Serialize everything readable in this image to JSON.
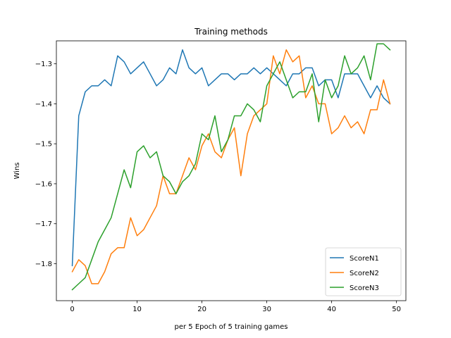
{
  "chart_data": {
    "type": "line",
    "title": "Training methods",
    "xlabel": "per 5 Epoch of 5 training games",
    "ylabel": "Wins",
    "xlim": [
      -2.45,
      51.45
    ],
    "ylim": [
      -1.8925,
      -1.2425
    ],
    "xticks": [
      0,
      10,
      20,
      30,
      40,
      50
    ],
    "yticks": [
      -1.8,
      -1.7,
      -1.6,
      -1.5,
      -1.4,
      -1.3
    ],
    "legend_position": "lower-right",
    "grid": false,
    "x": [
      0,
      1,
      2,
      3,
      4,
      5,
      6,
      7,
      8,
      9,
      10,
      11,
      12,
      13,
      14,
      15,
      16,
      17,
      18,
      19,
      20,
      21,
      22,
      23,
      24,
      25,
      26,
      27,
      28,
      29,
      30,
      31,
      32,
      33,
      34,
      35,
      36,
      37,
      38,
      39,
      40,
      41,
      42,
      43,
      44,
      45,
      46,
      47,
      48,
      49
    ],
    "series": [
      {
        "name": "ScoreN1",
        "color": "#1f77b4",
        "values": [
          -1.805,
          -1.43,
          -1.37,
          -1.355,
          -1.355,
          -1.34,
          -1.355,
          -1.28,
          -1.295,
          -1.325,
          -1.31,
          -1.295,
          -1.325,
          -1.355,
          -1.34,
          -1.31,
          -1.325,
          -1.265,
          -1.31,
          -1.325,
          -1.31,
          -1.355,
          -1.34,
          -1.325,
          -1.325,
          -1.34,
          -1.325,
          -1.325,
          -1.31,
          -1.325,
          -1.31,
          -1.325,
          -1.34,
          -1.355,
          -1.325,
          -1.325,
          -1.31,
          -1.31,
          -1.355,
          -1.34,
          -1.34,
          -1.385,
          -1.325,
          -1.325,
          -1.325,
          -1.355,
          -1.385,
          -1.355,
          -1.385,
          -1.4
        ]
      },
      {
        "name": "ScoreN2",
        "color": "#ff7f0e",
        "values": [
          -1.82,
          -1.79,
          -1.805,
          -1.85,
          -1.85,
          -1.82,
          -1.775,
          -1.76,
          -1.76,
          -1.685,
          -1.73,
          -1.715,
          -1.685,
          -1.655,
          -1.58,
          -1.625,
          -1.625,
          -1.58,
          -1.535,
          -1.565,
          -1.505,
          -1.475,
          -1.52,
          -1.535,
          -1.49,
          -1.46,
          -1.58,
          -1.475,
          -1.43,
          -1.415,
          -1.4,
          -1.28,
          -1.325,
          -1.265,
          -1.295,
          -1.28,
          -1.385,
          -1.355,
          -1.4,
          -1.4,
          -1.475,
          -1.46,
          -1.43,
          -1.46,
          -1.445,
          -1.475,
          -1.415,
          -1.415,
          -1.34,
          -1.4
        ]
      },
      {
        "name": "ScoreN3",
        "color": "#2ca02c",
        "values": [
          -1.865,
          -1.85,
          -1.835,
          -1.79,
          -1.745,
          -1.715,
          -1.685,
          -1.625,
          -1.565,
          -1.61,
          -1.52,
          -1.505,
          -1.535,
          -1.52,
          -1.58,
          -1.595,
          -1.625,
          -1.595,
          -1.58,
          -1.55,
          -1.475,
          -1.49,
          -1.43,
          -1.52,
          -1.49,
          -1.43,
          -1.43,
          -1.4,
          -1.415,
          -1.445,
          -1.355,
          -1.325,
          -1.295,
          -1.34,
          -1.385,
          -1.37,
          -1.37,
          -1.325,
          -1.445,
          -1.34,
          -1.385,
          -1.355,
          -1.28,
          -1.325,
          -1.31,
          -1.28,
          -1.34,
          -1.25,
          -1.25,
          -1.265
        ]
      }
    ]
  }
}
